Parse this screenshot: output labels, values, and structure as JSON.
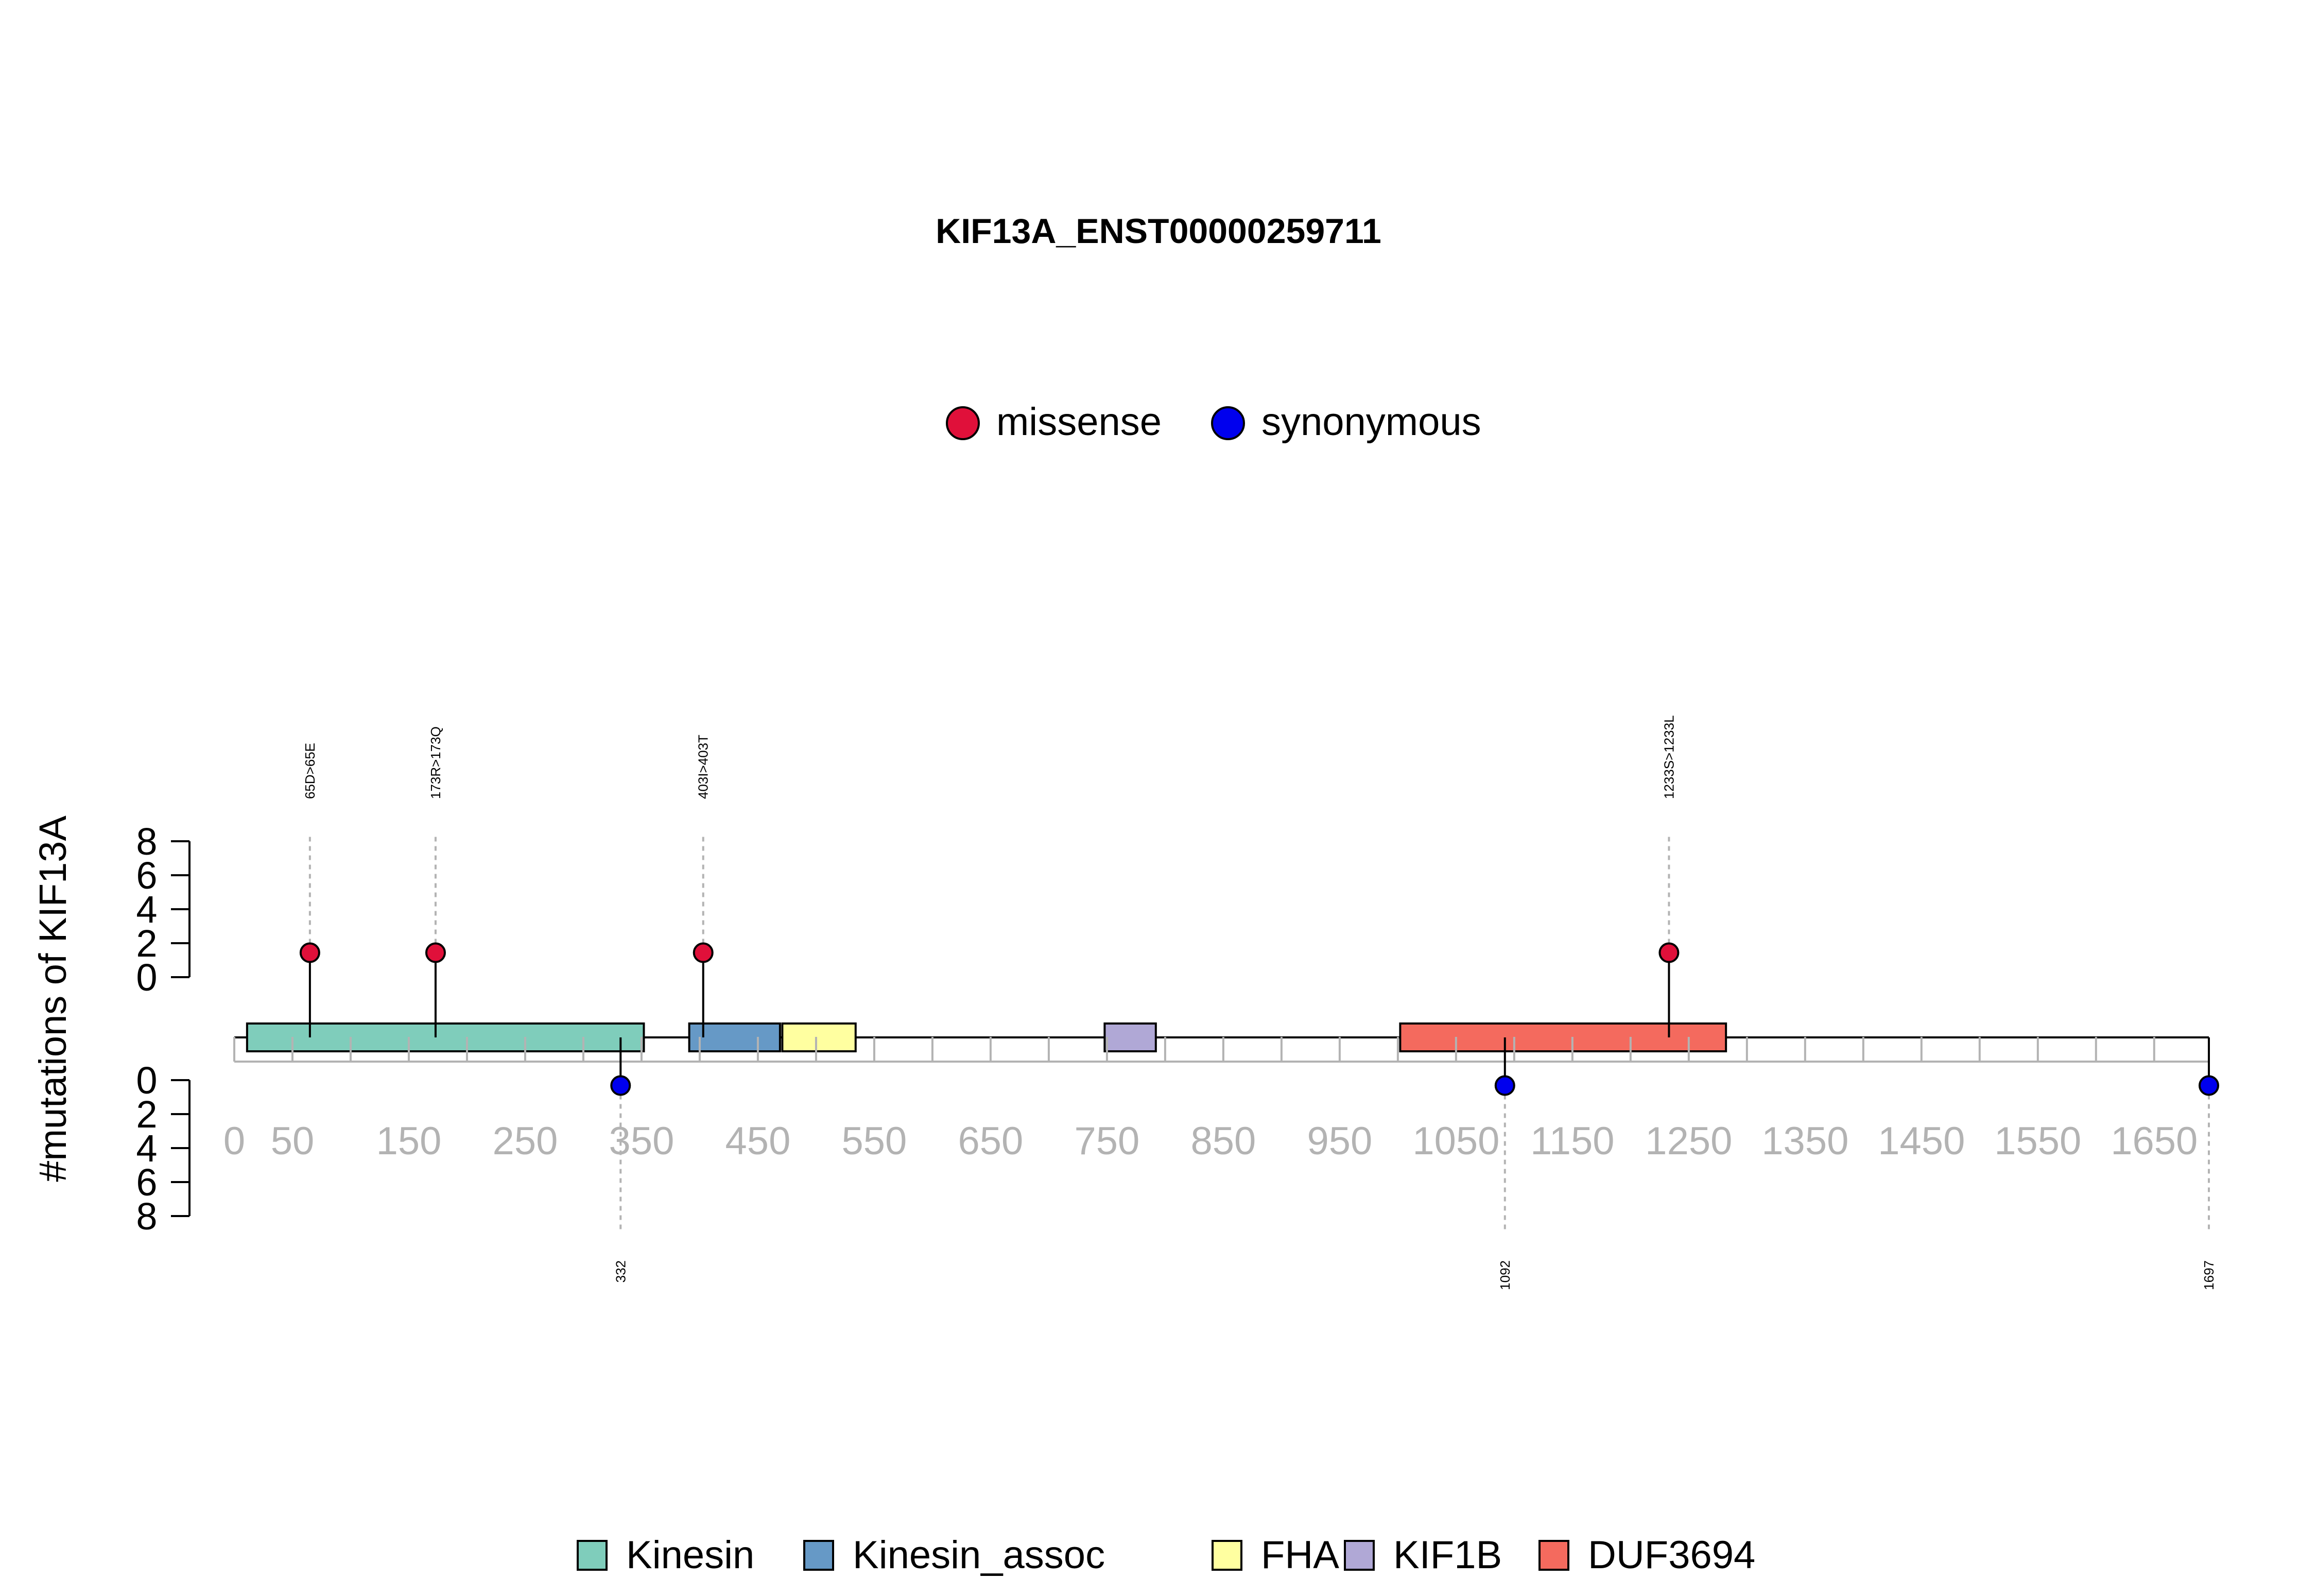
{
  "chart_data": {
    "type": "lollipop",
    "title": "KIF13A_ENST00000259711",
    "ylabel": "#mutations of KIF13A",
    "protein_length": 1697,
    "x_ticks": [
      0,
      50,
      150,
      250,
      350,
      450,
      550,
      650,
      750,
      850,
      950,
      1050,
      1150,
      1250,
      1350,
      1450,
      1550,
      1650
    ],
    "y_ticks_top": [
      0,
      2,
      4,
      6,
      8
    ],
    "y_ticks_bottom": [
      0,
      2,
      4,
      6,
      8
    ],
    "legend_mutation_types": [
      {
        "name": "missense",
        "color": "#e0103a"
      },
      {
        "name": "synonymous",
        "color": "#0000ee"
      }
    ],
    "domains": [
      {
        "name": "Kinesin",
        "start": 11,
        "end": 352,
        "color": "#7fcdbb"
      },
      {
        "name": "Kinesin_assoc",
        "start": 391,
        "end": 469,
        "color": "#6699c6"
      },
      {
        "name": "FHA",
        "start": 471,
        "end": 534,
        "color": "#ffffa0"
      },
      {
        "name": "KIF1B",
        "start": 748,
        "end": 792,
        "color": "#b0a8d6"
      },
      {
        "name": "DUF3694",
        "start": 1002,
        "end": 1282,
        "color": "#f46a5e"
      }
    ],
    "mutations": [
      {
        "label": "65D>65E",
        "position": 65,
        "count": 1,
        "type": "missense",
        "side": "top"
      },
      {
        "label": "173R>173Q",
        "position": 173,
        "count": 1,
        "type": "missense",
        "side": "top"
      },
      {
        "label": "403I>403T",
        "position": 403,
        "count": 1,
        "type": "missense",
        "side": "top"
      },
      {
        "label": "1233S>1233L",
        "position": 1233,
        "count": 1,
        "type": "missense",
        "side": "top"
      },
      {
        "label": "332",
        "position": 332,
        "count": 1,
        "type": "synonymous",
        "side": "bottom"
      },
      {
        "label": "1092",
        "position": 1092,
        "count": 1,
        "type": "synonymous",
        "side": "bottom"
      },
      {
        "label": "1697",
        "position": 1697,
        "count": 1,
        "type": "synonymous",
        "side": "bottom"
      }
    ]
  }
}
